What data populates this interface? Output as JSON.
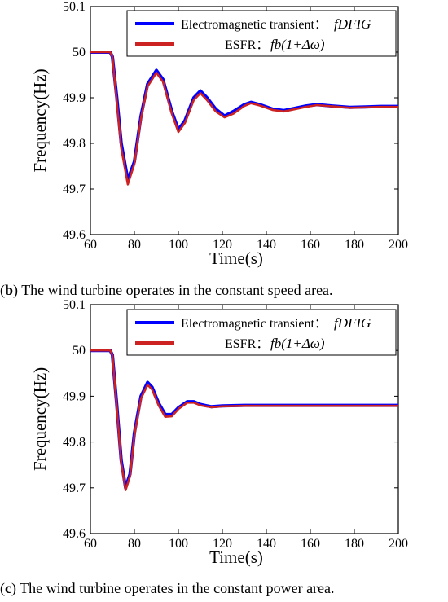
{
  "captions": [
    {
      "letter": "b",
      "text": " The wind turbine operates in the constant speed area."
    },
    {
      "letter": "c",
      "text": " The wind turbine operates in the constant power area."
    }
  ],
  "colors": {
    "series1": "#0000ff",
    "series2": "#cc2222",
    "axis": "#000000"
  },
  "chart_data": [
    {
      "type": "line",
      "panel": "b",
      "xlabel": "Time(s)",
      "ylabel": "Frequency(Hz)",
      "xlim": [
        60,
        200
      ],
      "ylim": [
        49.6,
        50.1
      ],
      "xticks": [
        60,
        80,
        100,
        120,
        140,
        160,
        180,
        200
      ],
      "yticks": [
        49.6,
        49.7,
        49.8,
        49.9,
        50,
        50.1
      ],
      "grid": false,
      "legend_position": "top-right",
      "series": [
        {
          "name": "Electromagnetic transient: fDFIG",
          "legend_text": "Electromagnetic transient：",
          "legend_math": "fDFIG",
          "x": [
            60,
            69,
            70,
            72,
            74,
            77,
            80,
            83,
            86,
            90,
            93,
            97,
            100,
            103,
            107,
            110,
            113,
            117,
            121,
            125,
            130,
            133,
            137,
            143,
            148,
            152,
            158,
            163,
            170,
            178,
            185,
            192,
            200
          ],
          "y": [
            50.0,
            50.0,
            49.99,
            49.9,
            49.8,
            49.72,
            49.76,
            49.86,
            49.93,
            49.96,
            49.94,
            49.87,
            49.83,
            49.85,
            49.9,
            49.915,
            49.9,
            49.875,
            49.86,
            49.87,
            49.885,
            49.89,
            49.885,
            49.875,
            49.872,
            49.876,
            49.882,
            49.885,
            49.882,
            49.879,
            49.88,
            49.881,
            49.881
          ]
        },
        {
          "name": "ESFR: fb(1+Δω)",
          "legend_text": "ESFR：",
          "legend_math": "fb(1+Δω)",
          "x": [
            60,
            69,
            70,
            72,
            74,
            77,
            80,
            83,
            86,
            90,
            93,
            97,
            100,
            103,
            107,
            110,
            113,
            117,
            121,
            125,
            130,
            133,
            137,
            143,
            148,
            152,
            158,
            163,
            170,
            178,
            185,
            192,
            200
          ],
          "y": [
            50.0,
            50.0,
            49.99,
            49.89,
            49.79,
            49.71,
            49.755,
            49.855,
            49.925,
            49.955,
            49.935,
            49.865,
            49.825,
            49.845,
            49.895,
            49.91,
            49.895,
            49.87,
            49.857,
            49.865,
            49.882,
            49.888,
            49.883,
            49.873,
            49.87,
            49.874,
            49.88,
            49.884,
            49.881,
            49.878,
            49.879,
            49.88,
            49.88
          ]
        }
      ]
    },
    {
      "type": "line",
      "panel": "c",
      "xlabel": "Time(s)",
      "ylabel": "Frequency(Hz)",
      "xlim": [
        60,
        200
      ],
      "ylim": [
        49.6,
        50.1
      ],
      "xticks": [
        60,
        80,
        100,
        120,
        140,
        160,
        180,
        200
      ],
      "yticks": [
        49.6,
        49.7,
        49.8,
        49.9,
        50,
        50.1
      ],
      "grid": false,
      "legend_position": "top-right",
      "series": [
        {
          "name": "Electromagnetic transient: fDFIG",
          "legend_text": "Electromagnetic transient：",
          "legend_math": "fDFIG",
          "x": [
            60,
            69,
            70,
            72,
            74,
            76,
            78,
            80,
            83,
            86,
            88,
            91,
            94,
            97,
            100,
            104,
            107,
            110,
            115,
            120,
            130,
            140,
            160,
            180,
            200
          ],
          "y": [
            50.0,
            50.0,
            49.99,
            49.88,
            49.76,
            49.7,
            49.73,
            49.82,
            49.9,
            49.93,
            49.92,
            49.885,
            49.86,
            49.86,
            49.875,
            49.888,
            49.888,
            49.882,
            49.877,
            49.879,
            49.88,
            49.88,
            49.88,
            49.88,
            49.88
          ]
        },
        {
          "name": "ESFR: fb(1+Δω)",
          "legend_text": "ESFR：",
          "legend_math": "fb(1+Δω)",
          "x": [
            60,
            69,
            70,
            72,
            74,
            76,
            78,
            80,
            83,
            86,
            88,
            91,
            94,
            97,
            100,
            104,
            107,
            110,
            115,
            120,
            130,
            140,
            160,
            180,
            200
          ],
          "y": [
            50.0,
            50.0,
            49.99,
            49.875,
            49.755,
            49.695,
            49.725,
            49.815,
            49.895,
            49.925,
            49.915,
            49.88,
            49.855,
            49.856,
            49.872,
            49.886,
            49.886,
            49.88,
            49.876,
            49.878,
            49.879,
            49.879,
            49.879,
            49.879,
            49.879
          ]
        }
      ]
    }
  ]
}
